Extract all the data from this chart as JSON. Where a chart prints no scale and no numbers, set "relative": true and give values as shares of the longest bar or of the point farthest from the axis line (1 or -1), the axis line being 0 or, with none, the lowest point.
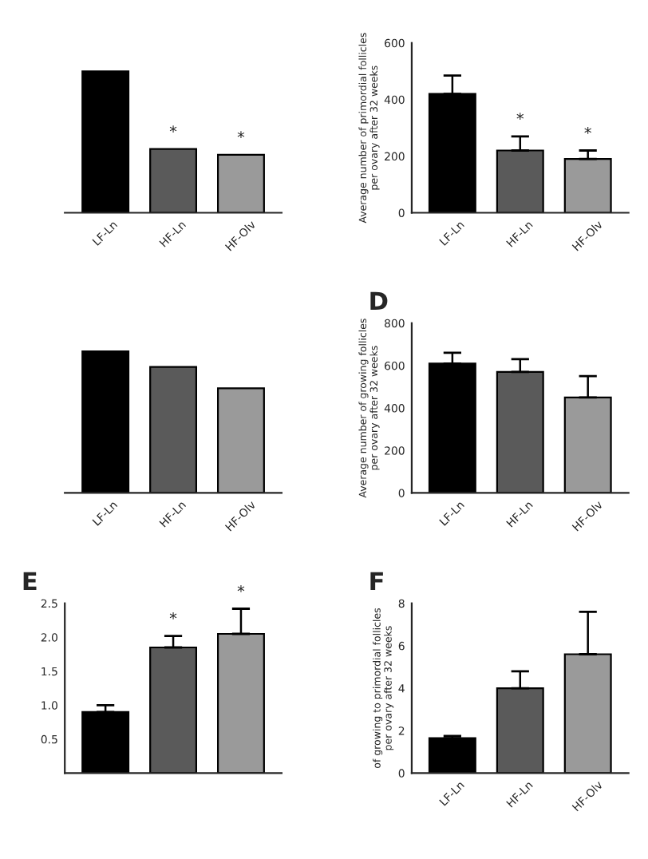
{
  "chart_data": [
    {
      "type": "bar",
      "relative": true,
      "categories": [
        "LF-Ln",
        "HF-Ln",
        "HF-Olv"
      ],
      "values": [
        1,
        0.45,
        0.41
      ],
      "colors": [
        "#000000",
        "#5a5a5a",
        "#9a9a9a"
      ],
      "tick_labels": "x",
      "annotations": [
        {
          "text": "*",
          "x": "HF-Ln",
          "y": 0.45
        },
        {
          "text": "*",
          "x": "HF-Olv",
          "y": 0.41
        }
      ]
    },
    {
      "type": "bar",
      "categories": [
        "LF-Ln",
        "HF-Ln",
        "HF-Olv"
      ],
      "values": [
        420,
        220,
        190
      ],
      "errors": [
        65,
        50,
        30
      ],
      "colors": [
        "#000000",
        "#5a5a5a",
        "#9a9a9a"
      ],
      "ylabel": "Average number of primordial follicles per ovary after 32 weeks",
      "ylim": [
        0,
        600
      ],
      "yticks": [
        0,
        200,
        400,
        600
      ],
      "annotations": [
        {
          "text": "*",
          "x": "HF-Ln",
          "y": 220
        },
        {
          "text": "*",
          "x": "HF-Olv",
          "y": 190
        }
      ]
    },
    {
      "type": "bar",
      "relative": true,
      "categories": [
        "LF-Ln",
        "HF-Ln",
        "HF-Olv"
      ],
      "values": [
        1,
        0.89,
        0.74
      ],
      "colors": [
        "#000000",
        "#5a5a5a",
        "#9a9a9a"
      ],
      "tick_labels": "x"
    },
    {
      "type": "bar",
      "title": "D",
      "categories": [
        "LF-Ln",
        "HF-Ln",
        "HF-Olv"
      ],
      "values": [
        610,
        570,
        450
      ],
      "errors": [
        50,
        60,
        100
      ],
      "colors": [
        "#000000",
        "#5a5a5a",
        "#9a9a9a"
      ],
      "ylabel": "Average number of growing follicles per ovary after 32 weeks",
      "ylim": [
        0,
        800
      ],
      "yticks": [
        0,
        200,
        400,
        600,
        800
      ]
    },
    {
      "type": "bar",
      "title": "E",
      "categories": [
        null,
        null,
        null
      ],
      "values": [
        0.9,
        1.85,
        2.05
      ],
      "errors": [
        0.1,
        0.17,
        0.37
      ],
      "colors": [
        "#000000",
        "#5a5a5a",
        "#9a9a9a"
      ],
      "ylim": [
        0,
        2.5
      ],
      "yticks": [
        {
          "value": 0.5,
          "label": "0.5"
        },
        {
          "value": 1.0,
          "label": "1.0"
        },
        {
          "value": 1.5,
          "label": "1.5"
        },
        {
          "value": 2.0,
          "label": "2.0"
        },
        {
          "value": 2.5,
          "label": "2.5"
        }
      ],
      "tick_labels": "y",
      "annotations": [
        {
          "text": "*",
          "y": 1.85
        },
        {
          "text": "*",
          "y": 2.05
        }
      ]
    },
    {
      "type": "bar",
      "title": "F",
      "categories": [
        "LF-Ln",
        "HF-Ln",
        "HF-Olv"
      ],
      "values": [
        1.65,
        4.0,
        5.6
      ],
      "errors": [
        0.1,
        0.8,
        2.0
      ],
      "colors": [
        "#000000",
        "#5a5a5a",
        "#9a9a9a"
      ],
      "ylabel": "of growing to primordial follicles per ovary after 32 weeks",
      "ylim": [
        0,
        8
      ],
      "yticks": [
        0,
        2,
        4,
        6,
        8
      ]
    }
  ]
}
